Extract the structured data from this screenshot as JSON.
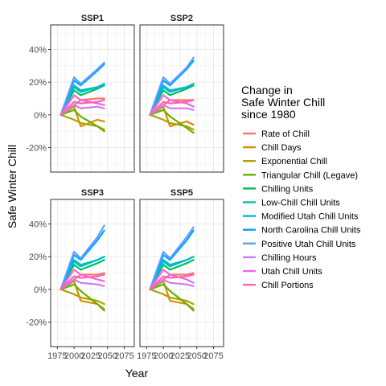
{
  "chart_data": {
    "type": "line",
    "xlabel": "Year",
    "ylabel": "Safe Winter Chill",
    "xlim": [
      1965,
      2090
    ],
    "ylim": [
      -35,
      55
    ],
    "x_ticks": [
      1975,
      2000,
      2025,
      2050,
      2075
    ],
    "x_tick_labels": [
      "1975",
      "2000",
      "2025",
      "2050",
      "2075"
    ],
    "y_ticks": [
      -20,
      0,
      20,
      40
    ],
    "y_tick_labels": [
      "-20%",
      "0%",
      "20%",
      "40%"
    ],
    "grid": true,
    "legend": {
      "title_lines": [
        "Change in",
        "Safe Winter Chill",
        "since 1980"
      ],
      "position": "right"
    },
    "series_meta": [
      {
        "name": "Rate of Chill",
        "color": "#F8766D"
      },
      {
        "name": "Chill Days",
        "color": "#DB8E00"
      },
      {
        "name": "Exponential Chill",
        "color": "#AEA200"
      },
      {
        "name": "Triangular Chill (Legave)",
        "color": "#64B200"
      },
      {
        "name": "Chilling Units",
        "color": "#00BD5C"
      },
      {
        "name": "Low-Chill Chill Units",
        "color": "#00C1A7"
      },
      {
        "name": "Modified Utah Chill Units",
        "color": "#00BADE"
      },
      {
        "name": "North Carolina Chill Units",
        "color": "#00A6FF"
      },
      {
        "name": "Positive Utah Chill Units",
        "color": "#619CFF"
      },
      {
        "name": "Chilling Hours",
        "color": "#C77CFF"
      },
      {
        "name": "Utah Chill Units",
        "color": "#F564E3"
      },
      {
        "name": "Chill Portions",
        "color": "#FF64B0"
      }
    ],
    "x": [
      1980,
      2000,
      2010,
      2035,
      2045
    ],
    "panels": [
      {
        "title": "SSP1",
        "series": [
          {
            "values": [
              0,
              6,
              9,
              10,
              10
            ]
          },
          {
            "values": [
              0,
              5,
              -7,
              -3,
              -4
            ]
          },
          {
            "values": [
              0,
              -3,
              -5,
              -7,
              -9
            ]
          },
          {
            "values": [
              0,
              3,
              -1,
              -7,
              -10
            ]
          },
          {
            "values": [
              0,
              15,
              12,
              16,
              18
            ]
          },
          {
            "values": [
              0,
              17,
              14,
              17,
              19
            ]
          },
          {
            "values": [
              0,
              18,
              15,
              17,
              18
            ]
          },
          {
            "values": [
              0,
              21,
              18,
              27,
              31
            ]
          },
          {
            "values": [
              0,
              23,
              19,
              28,
              32
            ]
          },
          {
            "values": [
              0,
              6,
              4,
              5,
              4
            ]
          },
          {
            "values": [
              0,
              12,
              9,
              7,
              6
            ]
          },
          {
            "values": [
              0,
              8,
              7,
              8,
              9
            ]
          }
        ]
      },
      {
        "title": "SSP2",
        "series": [
          {
            "values": [
              0,
              6,
              9,
              9,
              9
            ]
          },
          {
            "values": [
              0,
              5,
              -7,
              -4,
              -6
            ]
          },
          {
            "values": [
              0,
              -3,
              -5,
              -7,
              -9
            ]
          },
          {
            "values": [
              0,
              3,
              -1,
              -8,
              -11
            ]
          },
          {
            "values": [
              0,
              15,
              12,
              16,
              18
            ]
          },
          {
            "values": [
              0,
              17,
              14,
              17,
              19
            ]
          },
          {
            "values": [
              0,
              18,
              15,
              17,
              19
            ]
          },
          {
            "values": [
              0,
              21,
              18,
              28,
              33
            ]
          },
          {
            "values": [
              0,
              23,
              19,
              29,
              35
            ]
          },
          {
            "values": [
              0,
              6,
              4,
              4,
              3
            ]
          },
          {
            "values": [
              0,
              12,
              9,
              7,
              5
            ]
          },
          {
            "values": [
              0,
              8,
              7,
              8,
              9
            ]
          }
        ]
      },
      {
        "title": "SSP3",
        "series": [
          {
            "values": [
              0,
              6,
              9,
              9,
              10
            ]
          },
          {
            "values": [
              0,
              5,
              -7,
              -9,
              -12
            ]
          },
          {
            "values": [
              0,
              -3,
              -5,
              -7,
              -9
            ]
          },
          {
            "values": [
              0,
              3,
              -1,
              -9,
              -13
            ]
          },
          {
            "values": [
              0,
              15,
              12,
              16,
              18
            ]
          },
          {
            "values": [
              0,
              17,
              14,
              18,
              20
            ]
          },
          {
            "values": [
              0,
              18,
              15,
              18,
              20
            ]
          },
          {
            "values": [
              0,
              21,
              18,
              30,
              36
            ]
          },
          {
            "values": [
              0,
              23,
              19,
              32,
              39
            ]
          },
          {
            "values": [
              0,
              6,
              4,
              3,
              2
            ]
          },
          {
            "values": [
              0,
              12,
              9,
              6,
              5
            ]
          },
          {
            "values": [
              0,
              8,
              7,
              8,
              9
            ]
          }
        ]
      },
      {
        "title": "SSP5",
        "series": [
          {
            "values": [
              0,
              6,
              9,
              9,
              10
            ]
          },
          {
            "values": [
              0,
              5,
              -7,
              -9,
              -12
            ]
          },
          {
            "values": [
              0,
              -3,
              -5,
              -7,
              -9
            ]
          },
          {
            "values": [
              0,
              3,
              -1,
              -9,
              -13
            ]
          },
          {
            "values": [
              0,
              15,
              12,
              16,
              18
            ]
          },
          {
            "values": [
              0,
              17,
              14,
              18,
              20
            ]
          },
          {
            "values": [
              0,
              18,
              15,
              18,
              20
            ]
          },
          {
            "values": [
              0,
              21,
              18,
              30,
              36
            ]
          },
          {
            "values": [
              0,
              23,
              19,
              32,
              38
            ]
          },
          {
            "values": [
              0,
              6,
              4,
              3,
              2
            ]
          },
          {
            "values": [
              0,
              12,
              9,
              6,
              4
            ]
          },
          {
            "values": [
              0,
              8,
              7,
              8,
              9
            ]
          }
        ]
      }
    ]
  }
}
